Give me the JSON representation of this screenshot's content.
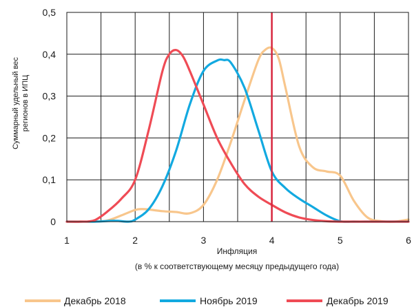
{
  "chart_data": {
    "type": "line",
    "title": "",
    "xlabel": "Инфляция",
    "xlabel_sub": "(в % к соответствующему месяцу предыдущего года)",
    "ylabel_lines": [
      "Суммарный удельный вес",
      "регионов в ИПЦ"
    ],
    "xlim": [
      1,
      6
    ],
    "ylim": [
      0,
      0.5
    ],
    "x_ticks": [
      1,
      2,
      3,
      4,
      5,
      6
    ],
    "x_tick_labels": [
      "1",
      "2",
      "3",
      "4",
      "5",
      "6"
    ],
    "y_ticks": [
      0,
      0.1,
      0.2,
      0.3,
      0.4,
      0.5
    ],
    "y_tick_labels": [
      "0",
      "0,1",
      "0,2",
      "0,3",
      "0,4",
      "0,5"
    ],
    "grid": true,
    "legend_position": "bottom",
    "vertical_line": {
      "x": 4,
      "color": "#d7263d"
    },
    "series": [
      {
        "name": "Декабрь 2018",
        "color": "#f8c68c",
        "x": [
          1.0,
          1.2,
          1.4,
          1.6,
          1.8,
          2.0,
          2.1,
          2.2,
          2.4,
          2.6,
          2.8,
          3.0,
          3.2,
          3.4,
          3.6,
          3.8,
          3.9,
          4.0,
          4.1,
          4.2,
          4.4,
          4.6,
          4.8,
          5.0,
          5.2,
          5.4,
          5.6,
          5.8,
          6.0
        ],
        "y": [
          0,
          0,
          0,
          0.003,
          0.015,
          0.028,
          0.03,
          0.029,
          0.025,
          0.023,
          0.02,
          0.04,
          0.1,
          0.19,
          0.29,
          0.385,
          0.41,
          0.415,
          0.39,
          0.32,
          0.18,
          0.13,
          0.12,
          0.11,
          0.05,
          0.01,
          0.001,
          0,
          0.005
        ]
      },
      {
        "name": "Ноябрь 2019",
        "color": "#12a9e0",
        "x": [
          1.0,
          1.4,
          1.7,
          1.9,
          2.0,
          2.2,
          2.4,
          2.6,
          2.8,
          3.0,
          3.2,
          3.3,
          3.4,
          3.6,
          3.8,
          4.0,
          4.2,
          4.4,
          4.6,
          4.8,
          5.0,
          5.2,
          5.5,
          6.0
        ],
        "y": [
          0,
          0,
          0.002,
          0,
          0.005,
          0.03,
          0.085,
          0.17,
          0.28,
          0.36,
          0.385,
          0.386,
          0.38,
          0.32,
          0.22,
          0.12,
          0.08,
          0.055,
          0.035,
          0.015,
          0.001,
          0,
          0,
          0
        ]
      },
      {
        "name": "Декабрь 2019",
        "color": "#ef4b55",
        "x": [
          1.0,
          1.2,
          1.4,
          1.6,
          1.8,
          2.0,
          2.2,
          2.4,
          2.5,
          2.6,
          2.7,
          2.8,
          3.0,
          3.2,
          3.4,
          3.6,
          3.8,
          4.0,
          4.2,
          4.4,
          4.6,
          4.8,
          5.0,
          5.5,
          6.0
        ],
        "y": [
          0,
          0,
          0.003,
          0.025,
          0.055,
          0.1,
          0.22,
          0.36,
          0.4,
          0.41,
          0.395,
          0.36,
          0.28,
          0.2,
          0.14,
          0.09,
          0.06,
          0.04,
          0.022,
          0.01,
          0.004,
          0.001,
          0,
          0,
          0
        ]
      }
    ]
  }
}
